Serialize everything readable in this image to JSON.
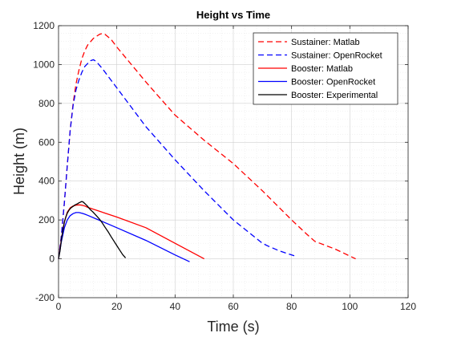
{
  "chart_data": {
    "type": "line",
    "title": "Height vs Time",
    "xlabel": "Time (s)",
    "ylabel": "Height (m)",
    "xlim": [
      0,
      120
    ],
    "ylim": [
      -200,
      1200
    ],
    "xticks": [
      "0",
      "20",
      "40",
      "60",
      "80",
      "100",
      "120"
    ],
    "yticks": [
      "-200",
      "0",
      "200",
      "400",
      "600",
      "800",
      "1000",
      "1200"
    ],
    "grid": true,
    "legend_position": "top-right",
    "series": [
      {
        "name": "Sustainer: Matlab",
        "color": "#ff0000",
        "dash": "dashed",
        "points": [
          [
            0,
            0
          ],
          [
            1,
            120
          ],
          [
            2,
            290
          ],
          [
            3,
            480
          ],
          [
            4,
            660
          ],
          [
            5,
            800
          ],
          [
            6,
            900
          ],
          [
            7,
            970
          ],
          [
            8,
            1030
          ],
          [
            9,
            1070
          ],
          [
            10,
            1100
          ],
          [
            12,
            1135
          ],
          [
            14,
            1155
          ],
          [
            15,
            1160
          ],
          [
            16,
            1155
          ],
          [
            18,
            1130
          ],
          [
            20,
            1090
          ],
          [
            30,
            910
          ],
          [
            40,
            740
          ],
          [
            50,
            610
          ],
          [
            60,
            490
          ],
          [
            70,
            350
          ],
          [
            80,
            200
          ],
          [
            85,
            130
          ],
          [
            88,
            90
          ],
          [
            95,
            50
          ],
          [
            102,
            0
          ]
        ]
      },
      {
        "name": "Sustainer: OpenRocket",
        "color": "#0000ff",
        "dash": "dashed",
        "points": [
          [
            0,
            0
          ],
          [
            1,
            120
          ],
          [
            2,
            290
          ],
          [
            3,
            480
          ],
          [
            4,
            660
          ],
          [
            5,
            790
          ],
          [
            6,
            870
          ],
          [
            7,
            920
          ],
          [
            8,
            960
          ],
          [
            9,
            990
          ],
          [
            10,
            1005
          ],
          [
            11,
            1020
          ],
          [
            12,
            1025
          ],
          [
            13,
            1015
          ],
          [
            15,
            980
          ],
          [
            20,
            880
          ],
          [
            30,
            680
          ],
          [
            40,
            510
          ],
          [
            50,
            350
          ],
          [
            60,
            200
          ],
          [
            70,
            80
          ],
          [
            72,
            65
          ],
          [
            76,
            40
          ],
          [
            81,
            15
          ]
        ]
      },
      {
        "name": "Booster: Matlab",
        "color": "#ff0000",
        "dash": "solid",
        "points": [
          [
            0,
            0
          ],
          [
            1,
            100
          ],
          [
            2,
            190
          ],
          [
            3,
            240
          ],
          [
            4,
            262
          ],
          [
            5,
            272
          ],
          [
            6,
            276
          ],
          [
            7,
            278
          ],
          [
            8,
            276
          ],
          [
            9,
            272
          ],
          [
            10,
            265
          ],
          [
            20,
            215
          ],
          [
            30,
            160
          ],
          [
            40,
            80
          ],
          [
            50,
            0
          ]
        ]
      },
      {
        "name": "Booster: OpenRocket",
        "color": "#0000ff",
        "dash": "solid",
        "points": [
          [
            0,
            0
          ],
          [
            1,
            90
          ],
          [
            2,
            160
          ],
          [
            3,
            200
          ],
          [
            4,
            222
          ],
          [
            5,
            233
          ],
          [
            6,
            238
          ],
          [
            7,
            238
          ],
          [
            8,
            235
          ],
          [
            9,
            230
          ],
          [
            10,
            224
          ],
          [
            20,
            160
          ],
          [
            30,
            95
          ],
          [
            40,
            20
          ],
          [
            45,
            -15
          ]
        ]
      },
      {
        "name": "Booster: Experimental",
        "color": "#000000",
        "dash": "solid",
        "points": [
          [
            0,
            0
          ],
          [
            0.5,
            40
          ],
          [
            1,
            100
          ],
          [
            1.5,
            150
          ],
          [
            2,
            190
          ],
          [
            2.5,
            215
          ],
          [
            3,
            235
          ],
          [
            3.5,
            248
          ],
          [
            4,
            258
          ],
          [
            4.5,
            265
          ],
          [
            5,
            270
          ],
          [
            5.5,
            276
          ],
          [
            6,
            280
          ],
          [
            6.5,
            283
          ],
          [
            7,
            288
          ],
          [
            7.5,
            292
          ],
          [
            8,
            295
          ],
          [
            8.5,
            292
          ],
          [
            9,
            285
          ],
          [
            9.5,
            278
          ],
          [
            10,
            270
          ],
          [
            10.5,
            260
          ],
          [
            11,
            252
          ],
          [
            11.5,
            245
          ],
          [
            12,
            238
          ],
          [
            13,
            222
          ],
          [
            14,
            205
          ],
          [
            15,
            185
          ],
          [
            16,
            162
          ],
          [
            17,
            140
          ],
          [
            18,
            115
          ],
          [
            19,
            92
          ],
          [
            20,
            68
          ],
          [
            21,
            45
          ],
          [
            22,
            22
          ],
          [
            23,
            5
          ]
        ]
      }
    ]
  }
}
